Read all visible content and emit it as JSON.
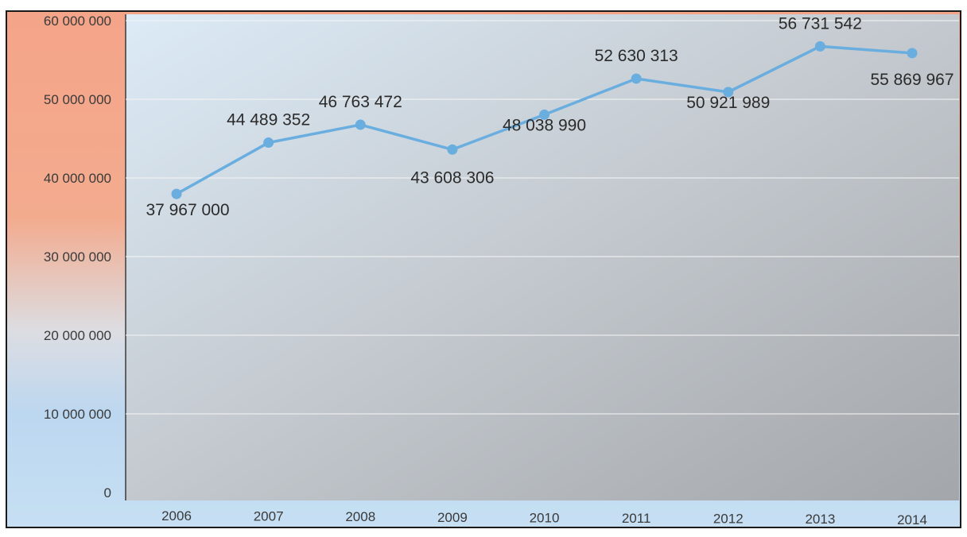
{
  "chart_data": {
    "type": "line",
    "title": "",
    "xlabel": "",
    "ylabel": "",
    "x": [
      "2006",
      "2007",
      "2008",
      "2009",
      "2010",
      "2011",
      "2012",
      "2013",
      "2014"
    ],
    "series": [
      {
        "values": [
          37967000,
          44489352,
          46763472,
          43608306,
          48038990,
          52630313,
          50921989,
          56731542,
          55869967
        ],
        "labels": [
          "37 967 000",
          "44 489 352",
          "46 763 472",
          "43 608 306",
          "48 038 990",
          "52 630 313",
          "50 921 989",
          "56 731 542",
          "55 869 967"
        ]
      }
    ],
    "ylim": [
      0,
      60000000
    ],
    "yticks": [
      0,
      10000000,
      20000000,
      30000000,
      40000000,
      50000000,
      60000000
    ],
    "ytick_labels": [
      "0",
      "10 000 000",
      "20 000 000",
      "30 000 000",
      "40 000 000",
      "50 000 000",
      "60 000 000"
    ],
    "grid": true,
    "legend": "none",
    "colors": {
      "line": "#6aaee0",
      "marker": "#6aaee0",
      "gridline": "#f4f4f4",
      "frame": "#1a1a1a"
    }
  }
}
